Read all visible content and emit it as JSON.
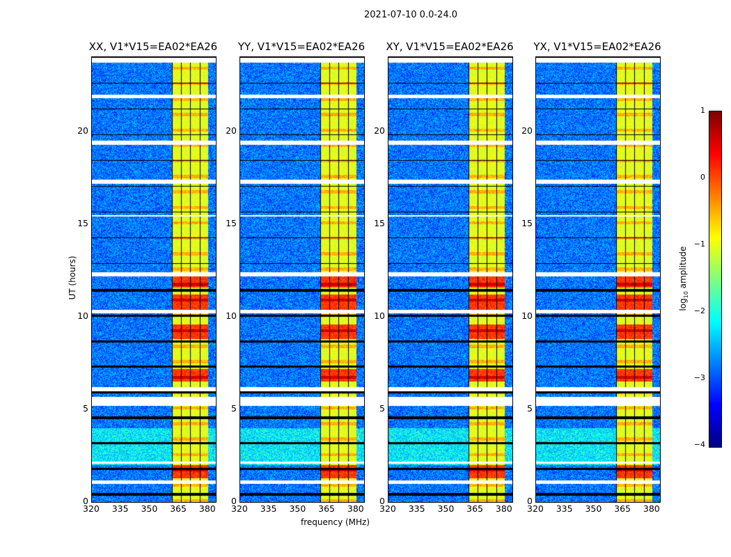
{
  "chart_data": {
    "type": "heatmap",
    "title": "2021-07-10 0.0-24.0",
    "xlabel": "frequency (MHz)",
    "ylabel": "UT (hours)",
    "xlim": [
      320,
      384
    ],
    "ylim": [
      0,
      24
    ],
    "xticks": [
      "320",
      "335",
      "350",
      "365",
      "380"
    ],
    "yticks": [
      "0",
      "5",
      "10",
      "15",
      "20"
    ],
    "panels": [
      {
        "title": "XX, V1*V15=EA02*EA26"
      },
      {
        "title": "YY, V1*V15=EA02*EA26"
      },
      {
        "title": "XY, V1*V15=EA02*EA26"
      },
      {
        "title": "YX, V1*V15=EA02*EA26"
      }
    ],
    "rfi_band_mhz": [
      361,
      380
    ],
    "background_log_amplitude": -2.8,
    "rfi_band_log_amplitude": -1.0,
    "flagged_hours": [
      [
        1.0,
        1.2
      ],
      [
        2.1,
        2.2
      ],
      [
        5.2,
        5.7
      ],
      [
        6.0,
        6.2
      ],
      [
        10.2,
        10.4
      ],
      [
        12.2,
        12.4
      ],
      [
        15.4,
        15.5
      ],
      [
        17.2,
        17.4
      ],
      [
        19.3,
        19.5
      ],
      [
        21.8,
        22.0
      ],
      [
        23.7,
        24.0
      ]
    ],
    "high_amplitude_hours": [
      [
        1.3,
        2.0
      ],
      [
        6.5,
        7.2
      ],
      [
        8.8,
        9.6
      ],
      [
        10.4,
        11.2
      ],
      [
        11.6,
        12.2
      ]
    ],
    "colorbar": {
      "label": "log10 amplitude",
      "label_main": "log",
      "label_sub": "10",
      "label_rest": " amplitude",
      "range": [
        -4,
        1
      ],
      "ticks": [
        "1",
        "0",
        "−1",
        "−2",
        "−3",
        "−4"
      ],
      "colormap": "jet"
    }
  }
}
